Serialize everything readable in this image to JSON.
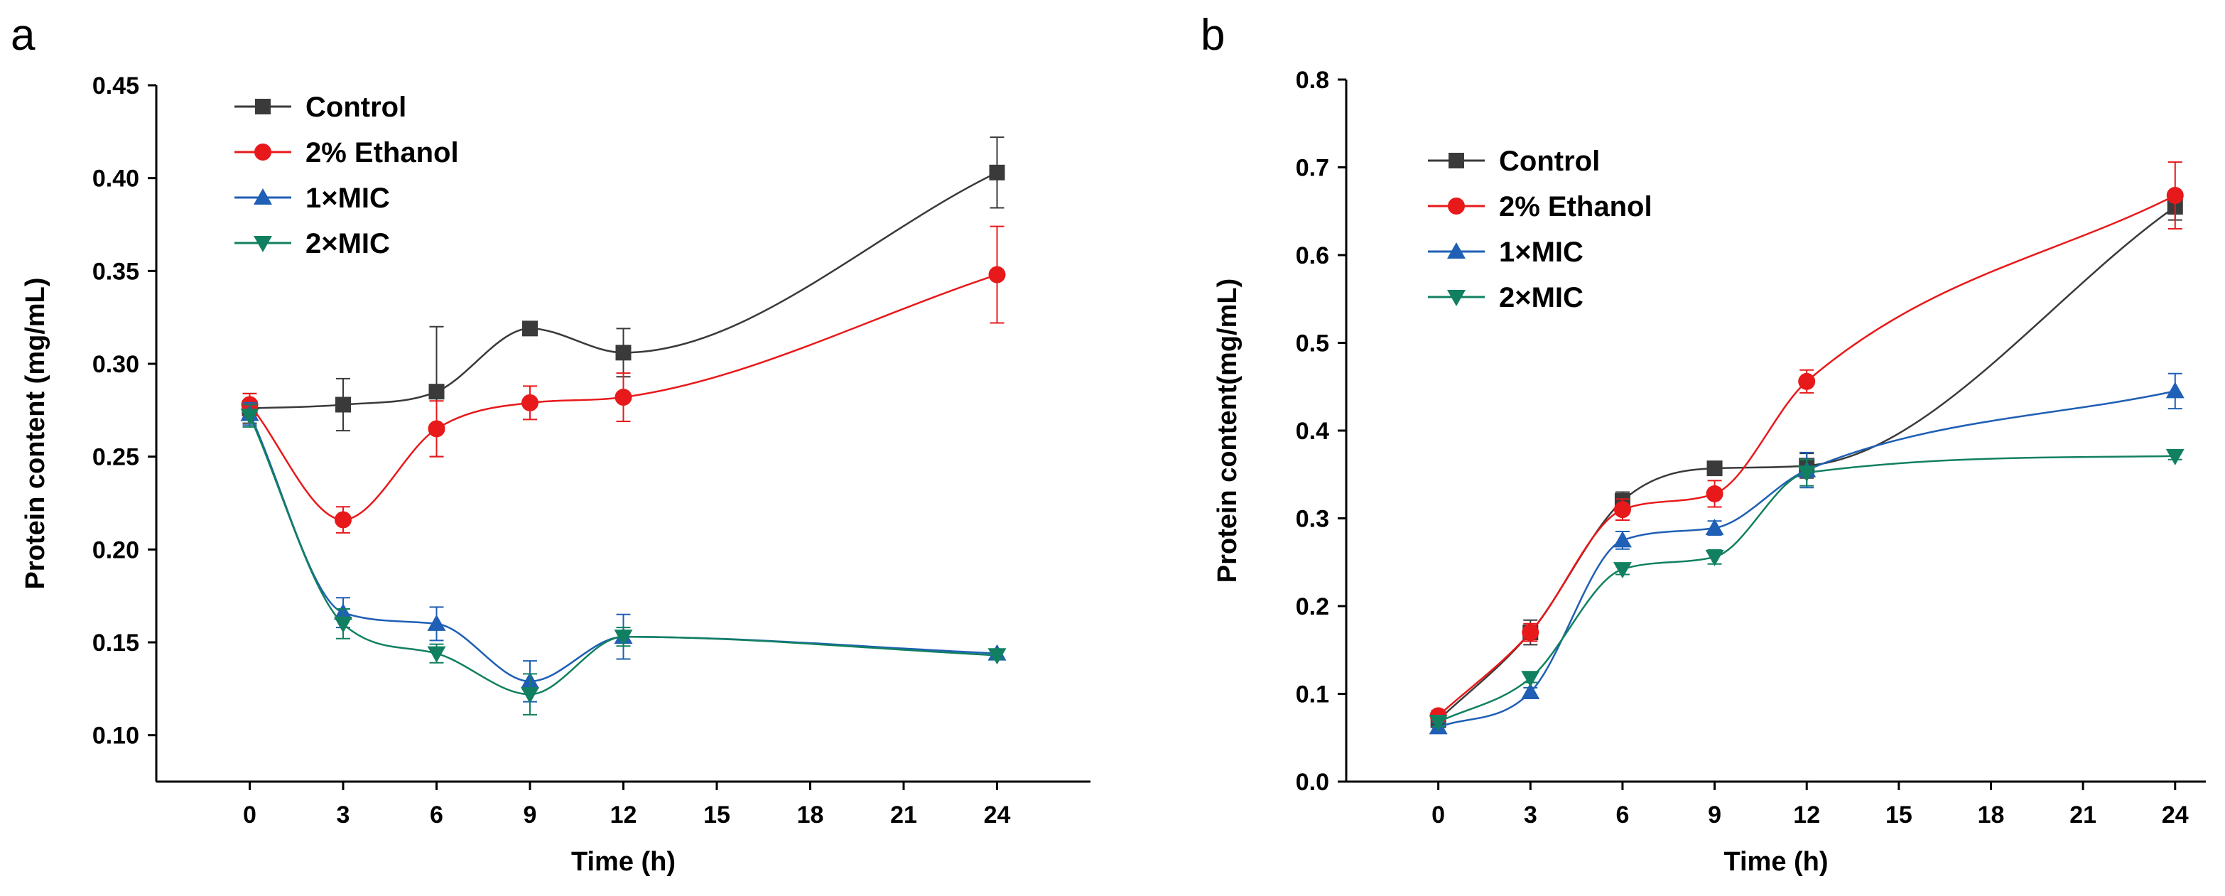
{
  "chart_data": [
    {
      "type": "line",
      "panel_label": "a",
      "xlabel": "Time (h)",
      "ylabel": "Protein content (mg/mL)",
      "x_ticks": [
        "0",
        "3",
        "6",
        "9",
        "12",
        "15",
        "18",
        "21",
        "24"
      ],
      "y_ticks": [
        "0.10",
        "0.15",
        "0.20",
        "0.25",
        "0.30",
        "0.35",
        "0.40",
        "0.45"
      ],
      "xlim": [
        -3,
        27
      ],
      "ylim": [
        0.075,
        0.45
      ],
      "x": [
        0,
        3,
        6,
        9,
        12,
        24
      ],
      "legend_position": "top-left",
      "series": [
        {
          "name": "Control",
          "color": "#3a3a3a",
          "marker": "square",
          "values": [
            0.276,
            0.278,
            0.285,
            0.319,
            0.306,
            0.403
          ],
          "errors": [
            0.008,
            0.014,
            0.035,
            0.002,
            0.013,
            0.019
          ]
        },
        {
          "name": "2% Ethanol",
          "color": "#e8191b",
          "marker": "circle",
          "values": [
            0.278,
            0.216,
            0.265,
            0.279,
            0.282,
            0.348
          ],
          "errors": [
            0.006,
            0.007,
            0.015,
            0.009,
            0.013,
            0.026
          ]
        },
        {
          "name": "1×MIC",
          "color": "#1f5fb5",
          "marker": "triangle-up",
          "values": [
            0.273,
            0.166,
            0.16,
            0.129,
            0.153,
            0.144
          ],
          "errors": [
            0.006,
            0.008,
            0.009,
            0.011,
            0.012,
            0.002
          ]
        },
        {
          "name": "2×MIC",
          "color": "#118060",
          "marker": "triangle-down",
          "values": [
            0.272,
            0.16,
            0.144,
            0.122,
            0.153,
            0.143
          ],
          "errors": [
            0.006,
            0.008,
            0.005,
            0.011,
            0.005,
            0.002
          ]
        }
      ]
    },
    {
      "type": "line",
      "panel_label": "b",
      "xlabel": "Time (h)",
      "ylabel": "Protein content(mg/mL)",
      "x_ticks": [
        "0",
        "3",
        "6",
        "9",
        "12",
        "15",
        "18",
        "21",
        "24"
      ],
      "y_ticks": [
        "0.0",
        "0.1",
        "0.2",
        "0.3",
        "0.4",
        "0.5",
        "0.6",
        "0.7",
        "0.8"
      ],
      "xlim": [
        -3,
        25
      ],
      "ylim": [
        0,
        0.8
      ],
      "x": [
        0,
        3,
        6,
        9,
        12,
        24
      ],
      "legend_position": "top-left",
      "series": [
        {
          "name": "Control",
          "color": "#3a3a3a",
          "marker": "square",
          "values": [
            0.07,
            0.17,
            0.32,
            0.357,
            0.36,
            0.655
          ],
          "errors": [
            0.006,
            0.014,
            0.01,
            0.006,
            0.014,
            0.015
          ]
        },
        {
          "name": "2% Ethanol",
          "color": "#e8191b",
          "marker": "circle",
          "values": [
            0.075,
            0.17,
            0.31,
            0.328,
            0.456,
            0.668
          ],
          "errors": [
            0.006,
            0.01,
            0.012,
            0.015,
            0.013,
            0.038
          ]
        },
        {
          "name": "1×MIC",
          "color": "#1f5fb5",
          "marker": "triangle-up",
          "values": [
            0.062,
            0.102,
            0.275,
            0.289,
            0.355,
            0.445
          ],
          "errors": [
            0.005,
            0.005,
            0.01,
            0.008,
            0.02,
            0.02
          ]
        },
        {
          "name": "2×MIC",
          "color": "#118060",
          "marker": "triangle-down",
          "values": [
            0.068,
            0.118,
            0.242,
            0.256,
            0.352,
            0.371
          ],
          "errors": [
            0.005,
            0.005,
            0.006,
            0.008,
            0.015,
            0.004
          ]
        }
      ]
    }
  ]
}
